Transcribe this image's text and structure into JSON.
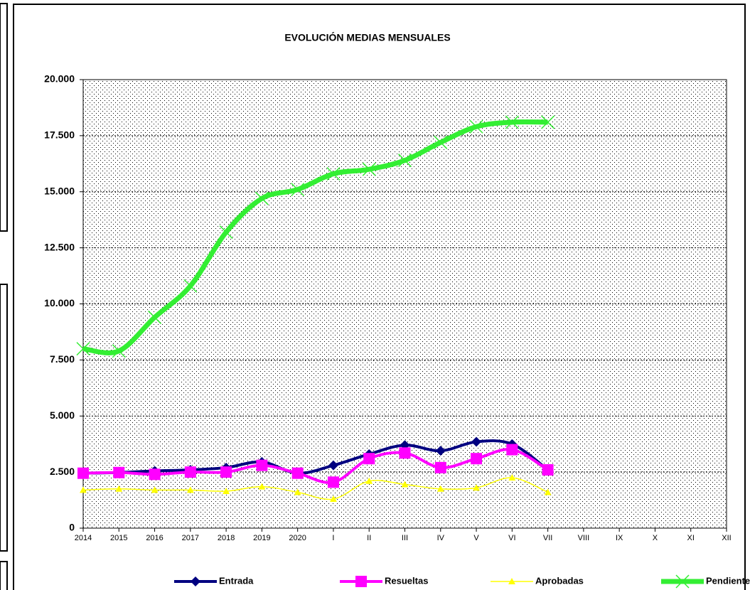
{
  "chart_data": {
    "type": "line",
    "title": "EVOLUCIÓN MEDIAS MENSUALES",
    "categories": [
      "2014",
      "2015",
      "2016",
      "2017",
      "2018",
      "2019",
      "2020",
      "I",
      "II",
      "III",
      "IV",
      "V",
      "VI",
      "VII",
      "VIII",
      "IX",
      "X",
      "XI",
      "XII"
    ],
    "series": [
      {
        "name": "Entrada",
        "color": "#000080",
        "marker": "diamond",
        "values": [
          2450,
          2480,
          2550,
          2600,
          2700,
          2950,
          2450,
          2800,
          3300,
          3700,
          3450,
          3850,
          3750,
          2600,
          null,
          null,
          null,
          null,
          null
        ]
      },
      {
        "name": "Resueltas",
        "color": "#ff00ff",
        "marker": "square",
        "values": [
          2450,
          2480,
          2400,
          2500,
          2500,
          2800,
          2450,
          2050,
          3100,
          3350,
          2700,
          3100,
          3500,
          2600,
          null,
          null,
          null,
          null,
          null
        ]
      },
      {
        "name": "Aprobadas",
        "color": "#ffff00",
        "marker": "triangle",
        "values": [
          1700,
          1750,
          1700,
          1700,
          1650,
          1850,
          1600,
          1300,
          2100,
          1950,
          1750,
          1800,
          2250,
          1600,
          null,
          null,
          null,
          null,
          null
        ]
      },
      {
        "name": "Pendientes",
        "color": "#33ee33",
        "marker": "x",
        "values": [
          8000,
          7900,
          9400,
          10800,
          13200,
          14700,
          15100,
          15800,
          16000,
          16400,
          17200,
          17900,
          18100,
          18100,
          null,
          null,
          null,
          null,
          null
        ]
      }
    ],
    "ylim": [
      0,
      20000
    ],
    "yticks": [
      0,
      {
        "value": 2500,
        "label": "2.500"
      },
      {
        "value": 5000,
        "label": "5.000"
      },
      {
        "value": 7500,
        "label": "7.500"
      },
      {
        "value": 10000,
        "label": "10.000"
      },
      {
        "value": 12500,
        "label": "12.500"
      },
      {
        "value": 15000,
        "label": "15.000"
      },
      {
        "value": 17500,
        "label": "17.500"
      },
      {
        "value": 20000,
        "label": "20.000"
      }
    ],
    "grid": true,
    "legend": "bottom"
  }
}
